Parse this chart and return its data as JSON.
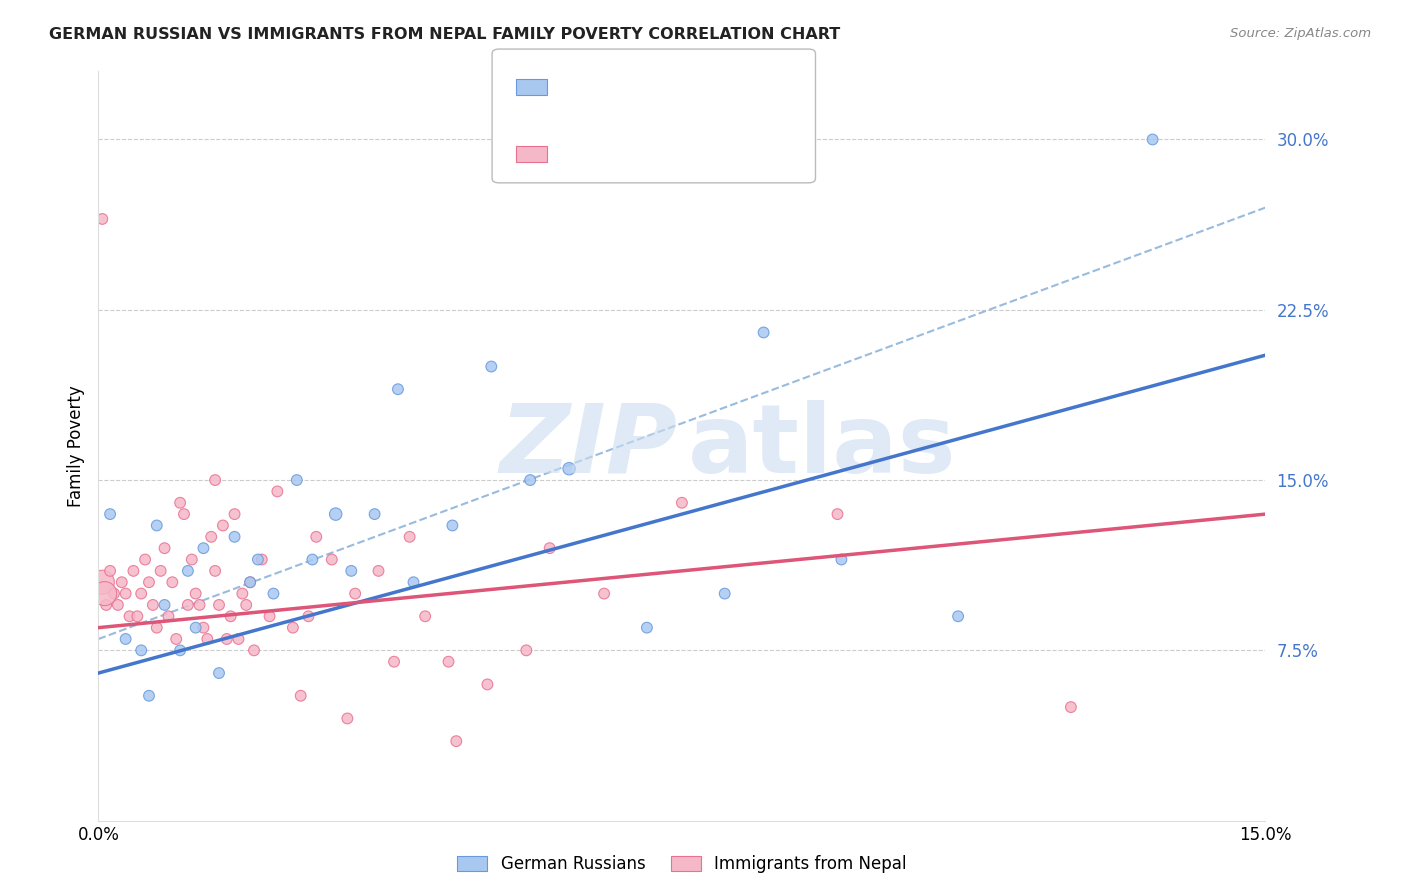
{
  "title": "GERMAN RUSSIAN VS IMMIGRANTS FROM NEPAL FAMILY POVERTY CORRELATION CHART",
  "source": "Source: ZipAtlas.com",
  "ylabel": "Family Poverty",
  "xlim": [
    0.0,
    15.0
  ],
  "ylim": [
    0.0,
    33.0
  ],
  "yticks": [
    7.5,
    15.0,
    22.5,
    30.0
  ],
  "ytick_labels": [
    "7.5%",
    "15.0%",
    "22.5%",
    "30.0%"
  ],
  "blue_color": "#a8c8f0",
  "pink_color": "#f5b8c8",
  "blue_edge_color": "#6699dd",
  "pink_edge_color": "#e87090",
  "blue_line_color": "#4477cc",
  "pink_line_color": "#dd5577",
  "dashed_line_color": "#99bbdd",
  "legend_label_blue": "German Russians",
  "legend_label_pink": "Immigrants from Nepal",
  "blue_R_color": "#4477cc",
  "pink_R_color": "#dd5577",
  "N_color": "#cc2222",
  "blue_scatter_x": [
    0.15,
    0.55,
    0.75,
    0.85,
    1.05,
    1.15,
    1.25,
    1.35,
    1.55,
    1.75,
    1.95,
    2.05,
    2.25,
    2.55,
    2.75,
    3.05,
    3.25,
    3.55,
    3.85,
    4.05,
    4.55,
    5.05,
    5.55,
    6.05,
    7.05,
    8.05,
    8.55,
    9.55,
    11.05,
    13.55,
    0.35,
    0.65
  ],
  "blue_scatter_y": [
    13.5,
    7.5,
    13.0,
    9.5,
    7.5,
    11.0,
    8.5,
    12.0,
    6.5,
    12.5,
    10.5,
    11.5,
    10.0,
    15.0,
    11.5,
    13.5,
    11.0,
    13.5,
    19.0,
    10.5,
    13.0,
    20.0,
    15.0,
    15.5,
    8.5,
    10.0,
    21.5,
    11.5,
    9.0,
    30.0,
    8.0,
    5.5
  ],
  "blue_scatter_size": [
    60,
    60,
    60,
    60,
    60,
    60,
    60,
    60,
    60,
    60,
    60,
    60,
    60,
    60,
    60,
    80,
    60,
    60,
    60,
    60,
    60,
    60,
    60,
    80,
    60,
    60,
    60,
    60,
    60,
    60,
    60,
    60
  ],
  "pink_scatter_x": [
    0.05,
    0.1,
    0.15,
    0.2,
    0.25,
    0.3,
    0.35,
    0.4,
    0.45,
    0.5,
    0.55,
    0.6,
    0.65,
    0.7,
    0.75,
    0.8,
    0.85,
    0.9,
    0.95,
    1.0,
    1.05,
    1.1,
    1.15,
    1.2,
    1.25,
    1.3,
    1.35,
    1.4,
    1.45,
    1.5,
    1.55,
    1.6,
    1.65,
    1.7,
    1.75,
    1.8,
    1.85,
    1.9,
    1.95,
    2.0,
    2.1,
    2.2,
    2.3,
    2.5,
    2.7,
    3.0,
    3.3,
    3.6,
    4.0,
    4.5,
    5.0,
    5.5,
    6.5,
    7.5,
    9.5,
    12.5,
    2.8,
    4.2,
    3.8,
    0.08,
    1.5,
    2.6,
    5.8,
    0.05,
    4.6,
    3.2
  ],
  "pink_scatter_y": [
    10.5,
    9.5,
    11.0,
    10.0,
    9.5,
    10.5,
    10.0,
    9.0,
    11.0,
    9.0,
    10.0,
    11.5,
    10.5,
    9.5,
    8.5,
    11.0,
    12.0,
    9.0,
    10.5,
    8.0,
    14.0,
    13.5,
    9.5,
    11.5,
    10.0,
    9.5,
    8.5,
    8.0,
    12.5,
    11.0,
    9.5,
    13.0,
    8.0,
    9.0,
    13.5,
    8.0,
    10.0,
    9.5,
    10.5,
    7.5,
    11.5,
    9.0,
    14.5,
    8.5,
    9.0,
    11.5,
    10.0,
    11.0,
    12.5,
    7.0,
    6.0,
    7.5,
    10.0,
    14.0,
    13.5,
    5.0,
    12.5,
    9.0,
    7.0,
    10.0,
    15.0,
    5.5,
    12.0,
    26.5,
    3.5,
    4.5
  ],
  "pink_scatter_size": [
    300,
    60,
    60,
    60,
    60,
    60,
    60,
    60,
    60,
    60,
    60,
    60,
    60,
    60,
    60,
    60,
    60,
    60,
    60,
    60,
    60,
    60,
    60,
    60,
    60,
    60,
    60,
    60,
    60,
    60,
    60,
    60,
    60,
    60,
    60,
    60,
    60,
    60,
    60,
    60,
    60,
    60,
    60,
    60,
    60,
    60,
    60,
    60,
    60,
    60,
    60,
    60,
    60,
    60,
    60,
    60,
    60,
    60,
    60,
    300,
    60,
    60,
    60,
    60,
    60,
    60
  ],
  "blue_trendline_x": [
    0.0,
    15.0
  ],
  "blue_trendline_y": [
    6.5,
    20.5
  ],
  "pink_trendline_y": [
    8.5,
    13.5
  ],
  "dashed_trendline_y": [
    8.0,
    27.0
  ]
}
